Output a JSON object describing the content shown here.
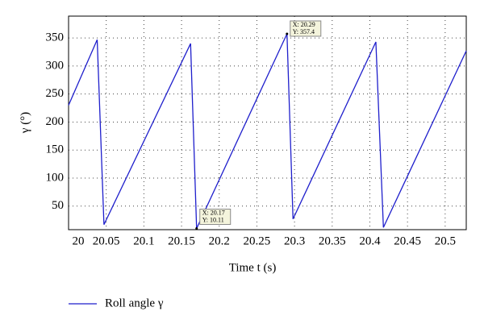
{
  "chart_data": {
    "type": "line",
    "x_label": "Time t (s)",
    "y_label": "γ (°)",
    "x": [
      20,
      20.038,
      20.047,
      20.162,
      20.17,
      20.29,
      20.298,
      20.408,
      20.418,
      20.528
    ],
    "series": [
      {
        "name": "Roll angle γ",
        "color": "#1f1fcc",
        "values": [
          230,
          347,
          17,
          340,
          10.11,
          357.4,
          27,
          343,
          12,
          327
        ]
      }
    ],
    "xlim": [
      20,
      20.528
    ],
    "ylim": [
      8,
      389
    ],
    "xticks": [
      20,
      20.05,
      20.1,
      20.15,
      20.2,
      20.25,
      20.3,
      20.35,
      20.4,
      20.45,
      20.5
    ],
    "yticks": [
      50,
      100,
      150,
      200,
      250,
      300,
      350
    ],
    "grid": true,
    "legend": "bottom-left",
    "annotations": [
      {
        "x": 20.17,
        "y": 10.11,
        "x_text": "X: 20.17",
        "y_text": "Y: 10.11"
      },
      {
        "x": 20.29,
        "y": 357.4,
        "x_text": "X: 20.29",
        "y_text": "Y: 357.4"
      }
    ]
  }
}
